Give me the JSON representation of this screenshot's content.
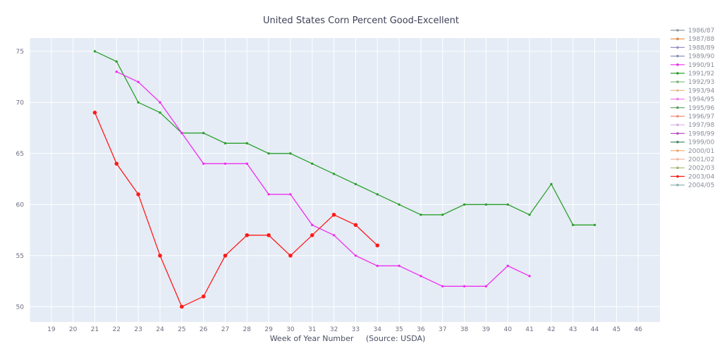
{
  "chart_data": {
    "type": "line",
    "title": "United States Corn Percent Good-Excellent",
    "xlabel": "Week of Year Number     (Source: USDA)",
    "ylabel": "",
    "xlim": [
      18,
      47
    ],
    "ylim": [
      48.5,
      76.3
    ],
    "x_ticks": [
      19,
      20,
      21,
      22,
      23,
      24,
      25,
      26,
      27,
      28,
      29,
      30,
      31,
      32,
      33,
      34,
      35,
      36,
      37,
      38,
      39,
      40,
      41,
      42,
      43,
      44,
      45,
      46
    ],
    "y_ticks": [
      50,
      55,
      60,
      65,
      70,
      75
    ],
    "grid": true,
    "legend_position": "right",
    "series": [
      {
        "name": "1991/92",
        "color": "#2ca02c",
        "marker": "small",
        "x": [
          21,
          22,
          23,
          24,
          25,
          26,
          27,
          28,
          29,
          30,
          31,
          32,
          33,
          34,
          35,
          36,
          37,
          38,
          39,
          40,
          41,
          42,
          43,
          44
        ],
        "y": [
          75,
          74,
          70,
          69,
          67,
          67,
          66,
          66,
          65,
          65,
          64,
          63,
          62,
          61,
          60,
          59,
          59,
          60,
          60,
          60,
          59,
          62,
          58,
          58
        ]
      },
      {
        "name": "1990/91",
        "color": "#ee30ee",
        "marker": "small",
        "x": [
          22,
          23,
          24,
          25,
          26,
          27,
          28,
          29,
          30,
          31,
          32,
          33,
          34,
          35,
          36,
          37,
          38,
          39,
          40,
          41
        ],
        "y": [
          73,
          72,
          70,
          67,
          64,
          64,
          64,
          61,
          61,
          58,
          57,
          55,
          54,
          54,
          53,
          52,
          52,
          52,
          54,
          53
        ]
      },
      {
        "name": "2003/04",
        "color": "#ff1a1a",
        "marker": "large",
        "x": [
          21,
          22,
          23,
          24,
          25,
          26,
          27,
          28,
          29,
          30,
          31,
          32,
          33,
          34
        ],
        "y": [
          69,
          64,
          61,
          55,
          50,
          51,
          55,
          57,
          57,
          55,
          57,
          59,
          58,
          56
        ]
      }
    ],
    "legend": [
      {
        "label": "1986/87",
        "color": "#8c9aa3"
      },
      {
        "label": "1987/88",
        "color": "#e08a45"
      },
      {
        "label": "1988/89",
        "color": "#9b8fc4"
      },
      {
        "label": "1989/90",
        "color": "#8a90b8"
      },
      {
        "label": "1990/91",
        "color": "#ee30ee"
      },
      {
        "label": "1991/92",
        "color": "#2ca02c"
      },
      {
        "label": "1992/93",
        "color": "#76b87a"
      },
      {
        "label": "1993/94",
        "color": "#e6c08c"
      },
      {
        "label": "1994/95",
        "color": "#f07ee8"
      },
      {
        "label": "1995/96",
        "color": "#5a9e5a"
      },
      {
        "label": "1996/97",
        "color": "#f08a7a"
      },
      {
        "label": "1997/98",
        "color": "#d6b0e6"
      },
      {
        "label": "1998/99",
        "color": "#c050c0"
      },
      {
        "label": "1999/00",
        "color": "#4c8f6c"
      },
      {
        "label": "2000/01",
        "color": "#f0a870"
      },
      {
        "label": "2001/02",
        "color": "#f0b8a0"
      },
      {
        "label": "2002/03",
        "color": "#a0b870"
      },
      {
        "label": "2003/04",
        "color": "#ff1a1a"
      },
      {
        "label": "2004/05",
        "color": "#8ab8b0"
      }
    ]
  }
}
